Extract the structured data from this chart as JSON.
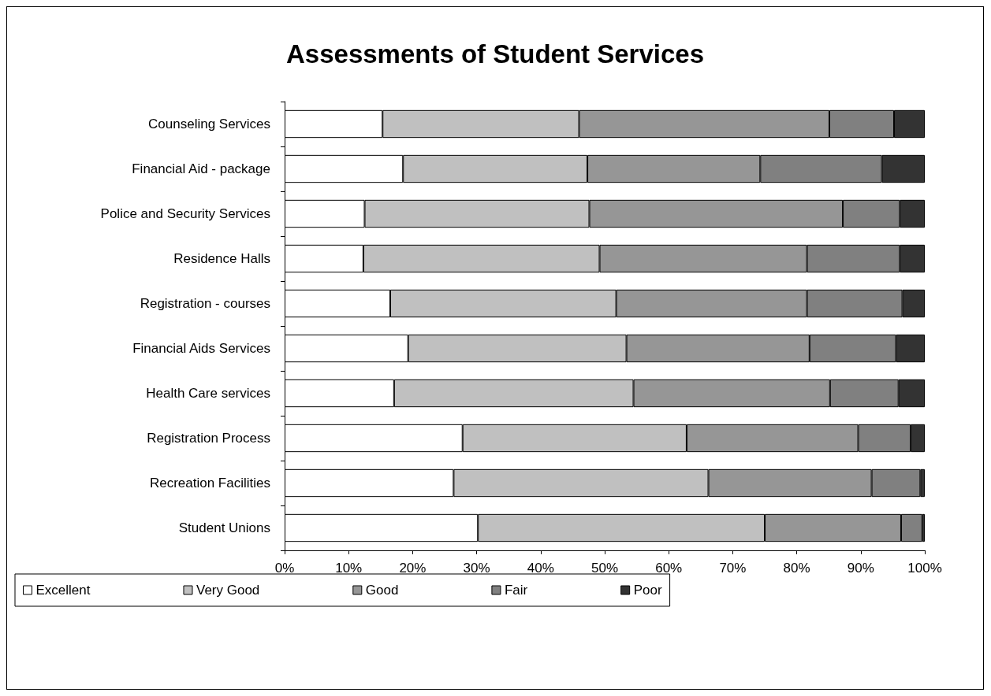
{
  "chart_data": {
    "type": "bar",
    "orientation": "horizontal",
    "stacked": true,
    "title": "Assessments of Student Services",
    "categories": [
      "Counseling Services",
      "Financial Aid - package",
      "Police and Security Services",
      "Residence Halls",
      "Registration - courses",
      "Financial Aids Services",
      "Health Care services",
      "Registration Process",
      "Recreation Facilities",
      "Student Unions"
    ],
    "series": [
      {
        "name": "Excellent",
        "color": "#ffffff",
        "values": [
          15.3,
          18.5,
          12.5,
          12.3,
          16.5,
          19.3,
          17.1,
          27.8,
          26.4,
          30.2
        ]
      },
      {
        "name": "Very Good",
        "color": "#c0c0c0",
        "values": [
          30.7,
          28.8,
          35.1,
          36.9,
          35.3,
          34.1,
          37.4,
          35.0,
          39.8,
          44.8
        ]
      },
      {
        "name": "Good",
        "color": "#969696",
        "values": [
          39.1,
          27.0,
          39.6,
          32.4,
          29.8,
          28.6,
          30.7,
          26.8,
          25.5,
          21.3
        ]
      },
      {
        "name": "Fair",
        "color": "#808080",
        "values": [
          10.1,
          19.0,
          8.9,
          14.5,
          14.9,
          13.5,
          10.7,
          8.2,
          7.6,
          3.3
        ]
      },
      {
        "name": "Poor",
        "color": "#333333",
        "values": [
          4.8,
          6.7,
          3.9,
          3.9,
          3.5,
          4.5,
          4.1,
          2.2,
          0.7,
          0.4
        ]
      }
    ],
    "xlim": [
      0,
      100
    ],
    "xticks": [
      {
        "value": 0,
        "label": "0%"
      },
      {
        "value": 10,
        "label": "10%"
      },
      {
        "value": 20,
        "label": "20%"
      },
      {
        "value": 30,
        "label": "30%"
      },
      {
        "value": 40,
        "label": "40%"
      },
      {
        "value": 50,
        "label": "50%"
      },
      {
        "value": 60,
        "label": "60%"
      },
      {
        "value": 70,
        "label": "70%"
      },
      {
        "value": 80,
        "label": "80%"
      },
      {
        "value": 90,
        "label": "90%"
      },
      {
        "value": 100,
        "label": "100%"
      }
    ],
    "grid": false,
    "legend": "bottom"
  }
}
